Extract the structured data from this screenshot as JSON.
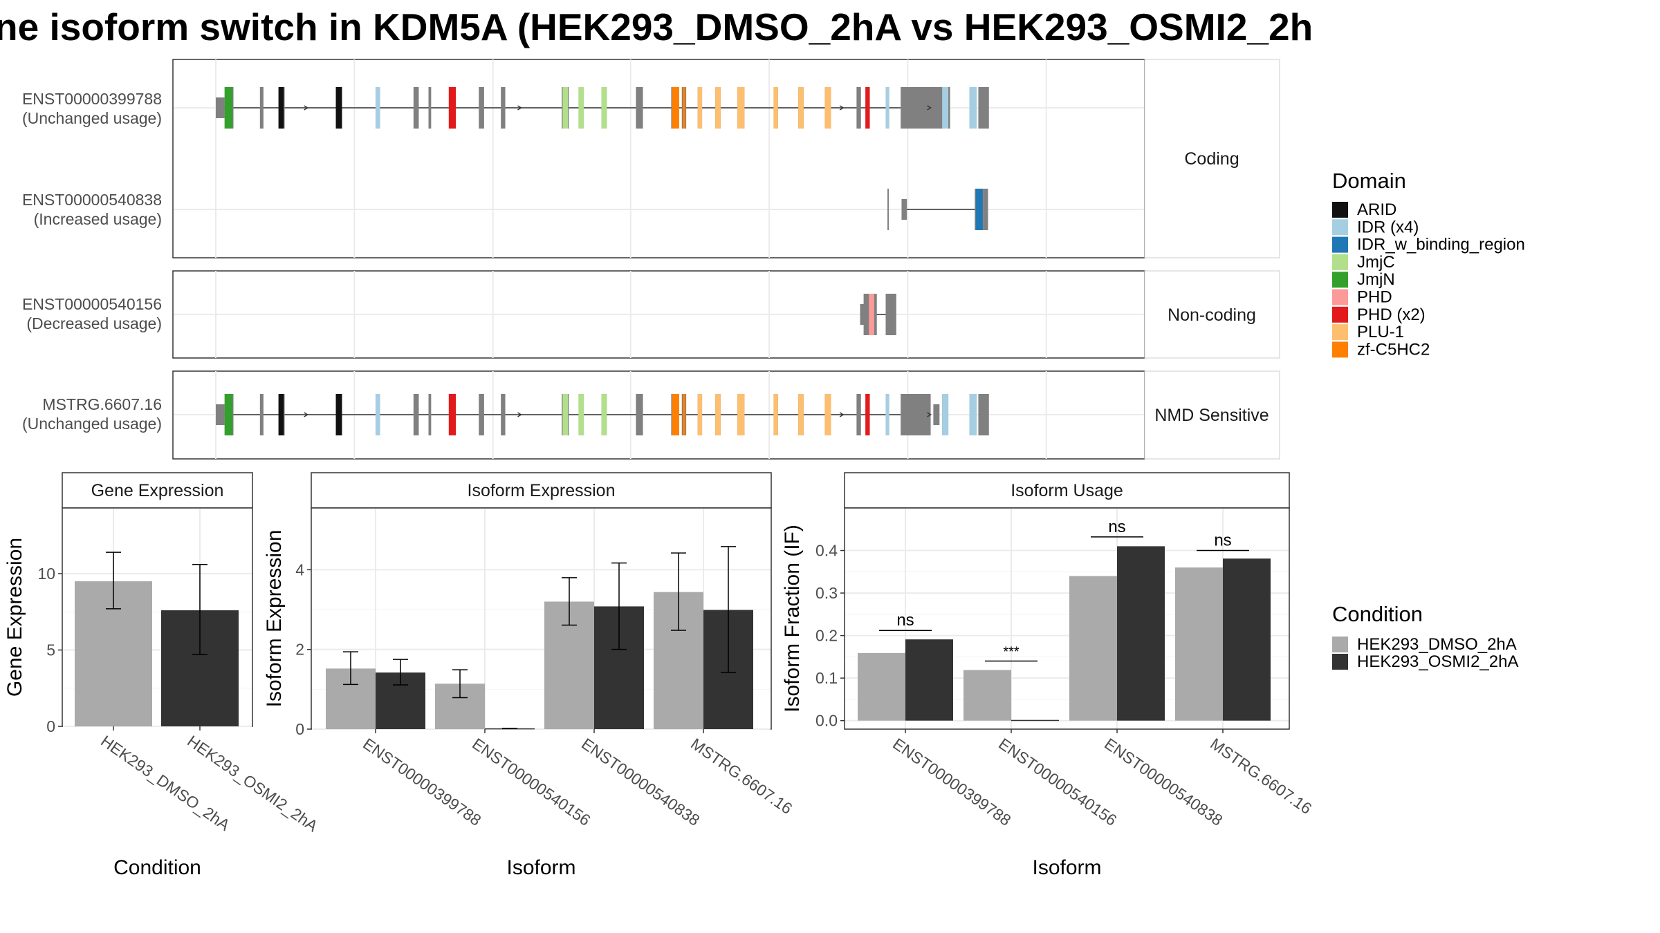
{
  "title": "ne isoform switch in KDM5A (HEK293_DMSO_2hA vs HEK293_OSMI2_2h",
  "colors": {
    "exon": "#808080",
    "dmso": "#aaaaaa",
    "osmi": "#333333",
    "grid": "#ebebeb"
  },
  "structure": {
    "x_range": [
      0,
      1000
    ],
    "isoforms": [
      {
        "id": "ENST00000399788",
        "usage": "(Unchanged usage)",
        "panel": 0,
        "intron": [
          2,
          776
        ],
        "exons": [
          [
            0,
            10,
            "s"
          ],
          [
            10,
            20,
            "t"
          ],
          [
            50,
            54,
            "t"
          ],
          [
            72,
            78,
            "t"
          ],
          [
            136,
            143,
            "t"
          ],
          [
            181,
            186,
            "t"
          ],
          [
            224,
            230,
            "t"
          ],
          [
            241,
            244,
            "t"
          ],
          [
            264,
            272,
            "t"
          ],
          [
            298,
            304,
            "t"
          ],
          [
            323,
            328,
            "t"
          ],
          [
            392,
            400,
            "t"
          ],
          [
            411,
            417,
            "t"
          ],
          [
            437,
            443,
            "t"
          ],
          [
            476,
            484,
            "t"
          ],
          [
            516,
            525,
            "t"
          ],
          [
            528,
            533,
            "t"
          ],
          [
            546,
            551,
            "t"
          ],
          [
            566,
            572,
            "t"
          ],
          [
            591,
            599,
            "t"
          ],
          [
            632,
            637,
            "t"
          ],
          [
            660,
            666,
            "t"
          ],
          [
            690,
            697,
            "t"
          ],
          [
            726,
            731,
            "t"
          ],
          [
            737,
            741,
            "t"
          ],
          [
            759,
            763,
            "t"
          ],
          [
            787,
            794,
            "t"
          ],
          [
            823,
            830,
            "t"
          ],
          [
            854,
            862,
            "t"
          ],
          [
            864,
            876,
            "t"
          ],
          [
            776,
            832,
            "u"
          ]
        ],
        "domains": [
          [
            10,
            19,
            "JmjN"
          ],
          [
            71,
            77,
            "ARID"
          ],
          [
            136,
            143,
            "ARID"
          ],
          [
            181,
            186,
            "IDR (x4)"
          ],
          [
            264,
            272,
            "PHD (x2)"
          ],
          [
            393,
            399,
            "JmjC"
          ],
          [
            411,
            417,
            "JmjC"
          ],
          [
            437,
            443,
            "JmjC"
          ],
          [
            517,
            525,
            "zf-C5HC2"
          ],
          [
            529,
            532,
            "zf-C5HC2"
          ],
          [
            546,
            551,
            "PLU-1"
          ],
          [
            566,
            572,
            "PLU-1"
          ],
          [
            591,
            599,
            "PLU-1"
          ],
          [
            632,
            637,
            "PLU-1"
          ],
          [
            660,
            666,
            "PLU-1"
          ],
          [
            690,
            697,
            "PLU-1"
          ],
          [
            736,
            741,
            "PHD (x2)"
          ],
          [
            759,
            763,
            "IDR (x4)"
          ],
          [
            823,
            830,
            "IDR (x4)"
          ],
          [
            854,
            862,
            "IDR (x4)"
          ]
        ],
        "arrows": [
          104,
          346,
          711,
          810
        ]
      },
      {
        "id": "ENST00000540838",
        "usage": "(Increased usage)",
        "panel": 0,
        "intron": [
          868,
          778
        ],
        "exons": [
          [
            860,
            870,
            "t"
          ],
          [
            870,
            875,
            "t"
          ],
          [
            761,
            762,
            "t"
          ],
          [
            777,
            783,
            "u"
          ]
        ],
        "domains": [
          [
            861,
            869,
            "IDR_w_binding_region"
          ]
        ],
        "arrows": []
      },
      {
        "id": "ENST00000540156",
        "usage": "(Decreased usage)",
        "panel": 1,
        "intron": [
          740,
          760
        ],
        "exons": [
          [
            730,
            735,
            "s"
          ],
          [
            734,
            749,
            "t"
          ],
          [
            759,
            771,
            "t"
          ]
        ],
        "domains": [
          [
            740,
            746,
            "PHD"
          ]
        ],
        "arrows": []
      },
      {
        "id": "MSTRG.6607.16",
        "usage": "(Unchanged usage)",
        "panel": 2,
        "intron": [
          2,
          776
        ],
        "exons": [
          [
            0,
            10,
            "s"
          ],
          [
            10,
            20,
            "t"
          ],
          [
            50,
            54,
            "t"
          ],
          [
            72,
            78,
            "t"
          ],
          [
            136,
            143,
            "t"
          ],
          [
            181,
            186,
            "t"
          ],
          [
            224,
            230,
            "t"
          ],
          [
            241,
            244,
            "t"
          ],
          [
            264,
            272,
            "t"
          ],
          [
            298,
            304,
            "t"
          ],
          [
            323,
            328,
            "t"
          ],
          [
            392,
            400,
            "t"
          ],
          [
            411,
            417,
            "t"
          ],
          [
            437,
            443,
            "t"
          ],
          [
            476,
            484,
            "t"
          ],
          [
            516,
            525,
            "t"
          ],
          [
            528,
            533,
            "t"
          ],
          [
            546,
            551,
            "t"
          ],
          [
            566,
            572,
            "t"
          ],
          [
            591,
            599,
            "t"
          ],
          [
            632,
            637,
            "t"
          ],
          [
            660,
            666,
            "t"
          ],
          [
            690,
            697,
            "t"
          ],
          [
            726,
            731,
            "t"
          ],
          [
            737,
            741,
            "t"
          ],
          [
            759,
            763,
            "t"
          ],
          [
            787,
            794,
            "t"
          ],
          [
            823,
            830,
            "t"
          ],
          [
            854,
            862,
            "t"
          ],
          [
            864,
            876,
            "t"
          ],
          [
            776,
            810,
            "u"
          ],
          [
            813,
            820,
            "s"
          ]
        ],
        "domains": [
          [
            10,
            19,
            "JmjN"
          ],
          [
            71,
            77,
            "ARID"
          ],
          [
            136,
            143,
            "ARID"
          ],
          [
            181,
            186,
            "IDR (x4)"
          ],
          [
            264,
            272,
            "PHD (x2)"
          ],
          [
            393,
            399,
            "JmjC"
          ],
          [
            411,
            417,
            "JmjC"
          ],
          [
            437,
            443,
            "JmjC"
          ],
          [
            517,
            525,
            "zf-C5HC2"
          ],
          [
            529,
            532,
            "zf-C5HC2"
          ],
          [
            546,
            551,
            "PLU-1"
          ],
          [
            566,
            572,
            "PLU-1"
          ],
          [
            591,
            599,
            "PLU-1"
          ],
          [
            632,
            637,
            "PLU-1"
          ],
          [
            660,
            666,
            "PLU-1"
          ],
          [
            690,
            697,
            "PLU-1"
          ],
          [
            736,
            741,
            "PHD (x2)"
          ],
          [
            759,
            763,
            "IDR (x4)"
          ],
          [
            823,
            830,
            "IDR (x4)"
          ],
          [
            854,
            862,
            "IDR (x4)"
          ]
        ],
        "arrows": [
          104,
          346,
          711,
          810
        ]
      }
    ],
    "panels": [
      "Coding",
      "Non-coding",
      "NMD Sensitive"
    ]
  },
  "legend_domain": {
    "title": "Domain",
    "items": [
      {
        "label": "ARID",
        "color": "#111111"
      },
      {
        "label": "IDR (x4)",
        "color": "#a6cee3"
      },
      {
        "label": "IDR_w_binding_region",
        "color": "#1f78b4"
      },
      {
        "label": "JmjC",
        "color": "#b2df8a"
      },
      {
        "label": "JmjN",
        "color": "#33a02c"
      },
      {
        "label": "PHD",
        "color": "#fb9a99"
      },
      {
        "label": "PHD (x2)",
        "color": "#e31a1c"
      },
      {
        "label": "PLU-1",
        "color": "#fdbf6f"
      },
      {
        "label": "zf-C5HC2",
        "color": "#ff7f00"
      }
    ]
  },
  "legend_condition": {
    "title": "Condition",
    "items": [
      {
        "label": "HEK293_DMSO_2hA",
        "color": "#aaaaaa"
      },
      {
        "label": "HEK293_OSMI2_2hA",
        "color": "#333333"
      }
    ]
  },
  "chart_data": [
    {
      "type": "bar",
      "title": "Gene Expression",
      "xlabel": "Condition",
      "ylabel": "Gene Expression",
      "ylim": [
        0,
        14.3
      ],
      "yticks": [
        0,
        5,
        10
      ],
      "categories": [
        "HEK293_DMSO_2hA",
        "HEK293_OSMI2_2hA"
      ],
      "series": [
        {
          "name": "HEK293_DMSO_2hA",
          "values": [
            9.5,
            null
          ],
          "err_low": [
            7.7,
            null
          ],
          "err_high": [
            11.4,
            null
          ]
        },
        {
          "name": "HEK293_OSMI2_2hA",
          "values": [
            null,
            7.6
          ],
          "err_low": [
            null,
            4.7
          ],
          "err_high": [
            null,
            10.6
          ]
        }
      ]
    },
    {
      "type": "bar",
      "title": "Isoform Expression",
      "xlabel": "Isoform",
      "ylabel": "Isoform Expression",
      "ylim": [
        0,
        5.55
      ],
      "yticks": [
        0,
        2,
        4
      ],
      "categories": [
        "ENST00000399788",
        "ENST00000540156",
        "ENST00000540838",
        "MSTRG.6607.16"
      ],
      "series": [
        {
          "name": "HEK293_DMSO_2hA",
          "values": [
            1.52,
            1.14,
            3.2,
            3.44
          ],
          "err_low": [
            1.12,
            0.79,
            2.61,
            2.48
          ],
          "err_high": [
            1.94,
            1.49,
            3.8,
            4.42
          ]
        },
        {
          "name": "HEK293_OSMI2_2hA",
          "values": [
            1.42,
            0.02,
            3.08,
            2.99
          ],
          "err_low": [
            1.11,
            0.02,
            2.0,
            1.42
          ],
          "err_high": [
            1.75,
            0.02,
            4.17,
            4.58
          ]
        }
      ]
    },
    {
      "type": "bar",
      "title": "Isoform Usage",
      "xlabel": "Isoform",
      "ylabel": "Isoform Fraction (IF)",
      "ylim": [
        -0.02,
        0.5
      ],
      "yticks": [
        0.0,
        0.1,
        0.2,
        0.3,
        0.4
      ],
      "ytick_labels": [
        "0.0",
        "0.1",
        "0.2",
        "0.3",
        "0.4"
      ],
      "categories": [
        "ENST00000399788",
        "ENST00000540156",
        "ENST00000540838",
        "MSTRG.6607.16"
      ],
      "series": [
        {
          "name": "HEK293_DMSO_2hA",
          "values": [
            0.159,
            0.119,
            0.34,
            0.36
          ]
        },
        {
          "name": "HEK293_OSMI2_2hA",
          "values": [
            0.191,
            0.0,
            0.41,
            0.381
          ]
        }
      ],
      "significance": [
        {
          "label": "ns",
          "y": 0.212
        },
        {
          "label": "***",
          "y": 0.14
        },
        {
          "label": "ns",
          "y": 0.432
        },
        {
          "label": "ns",
          "y": 0.4
        }
      ]
    }
  ]
}
